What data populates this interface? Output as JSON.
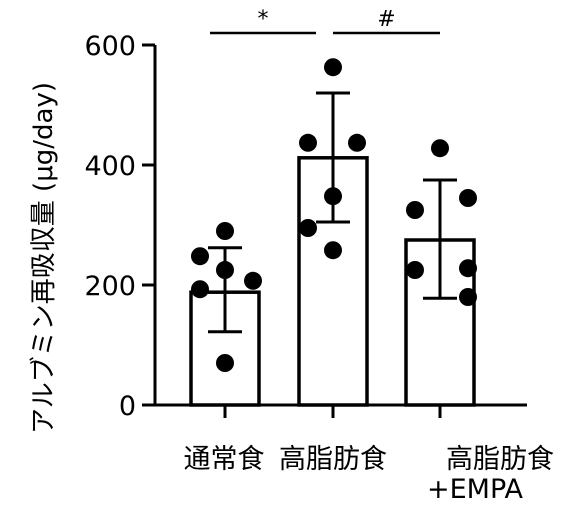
{
  "chart_data": {
    "type": "bar",
    "ylabel": "アルブミン再吸収量 (μg/day)",
    "ylim": [
      0,
      600
    ],
    "yticks": [
      0,
      200,
      400,
      600
    ],
    "categories": [
      {
        "lines": [
          "通常食"
        ]
      },
      {
        "lines": [
          "高脂肪食"
        ]
      },
      {
        "lines": [
          "高脂肪食",
          "+EMPA"
        ]
      }
    ],
    "values": [
      188,
      412,
      275
    ],
    "error": [
      {
        "low": 122,
        "high": 262
      },
      {
        "low": 305,
        "high": 520
      },
      {
        "low": 178,
        "high": 375
      }
    ],
    "points": [
      [
        290,
        248,
        225,
        207,
        193,
        70
      ],
      [
        563,
        437,
        437,
        348,
        295,
        258
      ],
      [
        428,
        345,
        325,
        228,
        225,
        180
      ]
    ],
    "significance": [
      {
        "from": 0,
        "to": 1,
        "label": "*"
      },
      {
        "from": 1,
        "to": 2,
        "label": "#"
      }
    ],
    "colors": {
      "bar_fill": "#ffffff",
      "stroke": "#000000",
      "point": "#000000"
    }
  }
}
